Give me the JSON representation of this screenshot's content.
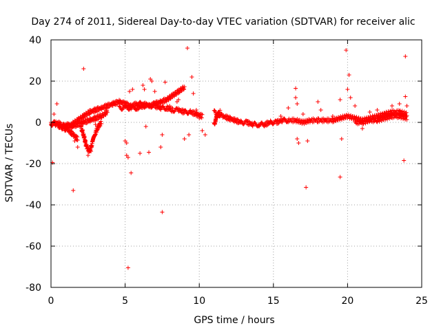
{
  "chart_data": {
    "type": "scatter",
    "title": "Day 274 of 2011, Sidereal Day-to-day VTEC variation (SDTVAR) for receiver alic",
    "xlabel": "GPS time / hours",
    "ylabel": "SDTVAR / TECUs",
    "xlim": [
      0,
      25
    ],
    "ylim": [
      -80,
      40
    ],
    "xticks": [
      0,
      5,
      10,
      15,
      20,
      25
    ],
    "yticks": [
      -80,
      -60,
      -40,
      -20,
      0,
      20,
      40
    ],
    "xtick_labels": [
      "0",
      "5",
      "10",
      "15",
      "20",
      "25"
    ],
    "ytick_labels": [
      "-80",
      "-60",
      "-40",
      "-20",
      "0",
      "20",
      "40"
    ],
    "grid": true,
    "marker": "+",
    "series": [
      {
        "name": "SDTVAR",
        "color": "#ff0000",
        "segments": [
          {
            "x": [
              0.0,
              0.3,
              0.7,
              1.0,
              1.4,
              1.8,
              2.2,
              2.6
            ],
            "y": [
              -1,
              0,
              -1,
              -2,
              -1,
              1,
              3,
              5
            ]
          },
          {
            "x": [
              2.6,
              3.0,
              3.4,
              3.8,
              4.2,
              4.6,
              5.0,
              5.4,
              5.8,
              6.2,
              6.6,
              7.0,
              7.4,
              7.8,
              8.2,
              8.6,
              9.0
            ],
            "y": [
              5,
              6,
              7,
              8,
              9,
              10,
              9,
              8,
              9,
              9,
              8,
              9,
              10,
              11,
              13,
              15,
              17
            ]
          },
          {
            "x": [
              4.6,
              5.0,
              5.4,
              5.8,
              6.2,
              6.6,
              7.0,
              7.4,
              7.8,
              8.2,
              8.6,
              9.0,
              9.4,
              9.8,
              10.2
            ],
            "y": [
              7,
              7,
              7,
              7,
              8,
              8,
              8,
              7,
              7,
              6,
              6,
              5,
              5,
              4,
              3
            ]
          },
          {
            "x": [
              0.0,
              0.3,
              0.6,
              0.9,
              1.2,
              1.5,
              1.8
            ],
            "y": [
              0,
              -1,
              -2,
              -3,
              -4,
              -6,
              -8
            ]
          },
          {
            "x": [
              2.0,
              2.2,
              2.4,
              2.6,
              2.8,
              3.0,
              3.2,
              3.4
            ],
            "y": [
              -2,
              -6,
              -12,
              -14,
              -10,
              -5,
              -2,
              0
            ]
          },
          {
            "x": [
              1.0,
              1.4,
              1.8,
              2.2,
              2.6,
              3.0,
              3.4,
              3.8
            ],
            "y": [
              -1,
              -2,
              -1,
              0,
              1,
              2,
              3,
              5
            ]
          },
          {
            "x": [
              11.0,
              11.3,
              11.6,
              12.0,
              12.4,
              12.8,
              13.2,
              13.6,
              14.0,
              14.4,
              14.8,
              15.2,
              15.6,
              16.0
            ],
            "y": [
              5,
              4,
              3,
              2,
              1,
              0,
              0,
              -1,
              -1,
              -1,
              0,
              0,
              1,
              1
            ]
          },
          {
            "x": [
              11.0,
              11.1,
              11.2,
              11.3,
              11.4
            ],
            "y": [
              -1,
              1,
              3,
              4,
              5
            ]
          },
          {
            "x": [
              16.0,
              16.5,
              17.0,
              17.5,
              18.0,
              18.5,
              19.0,
              19.5,
              20.0,
              20.5,
              21.0,
              21.5,
              22.0,
              22.5,
              23.0,
              23.5,
              24.0
            ],
            "y": [
              1,
              1,
              0,
              1,
              1,
              1,
              1,
              2,
              3,
              2,
              1,
              2,
              3,
              4,
              5,
              5,
              4
            ]
          },
          {
            "x": [
              20.5,
              21.0,
              21.5,
              22.0,
              22.5,
              23.0,
              23.5,
              24.0
            ],
            "y": [
              0,
              0,
              1,
              1,
              2,
              3,
              3,
              2
            ]
          }
        ],
        "points": [
          {
            "x": 0.1,
            "y": -19.5
          },
          {
            "x": 0.2,
            "y": 4
          },
          {
            "x": 0.4,
            "y": 9
          },
          {
            "x": 1.5,
            "y": -33
          },
          {
            "x": 1.6,
            "y": -9
          },
          {
            "x": 1.8,
            "y": -12
          },
          {
            "x": 2.2,
            "y": 26
          },
          {
            "x": 2.5,
            "y": -16
          },
          {
            "x": 2.7,
            "y": -14
          },
          {
            "x": 3.0,
            "y": -1
          },
          {
            "x": 3.3,
            "y": 4
          },
          {
            "x": 4.3,
            "y": 9
          },
          {
            "x": 4.8,
            "y": 10
          },
          {
            "x": 5.0,
            "y": -9
          },
          {
            "x": 5.1,
            "y": -10
          },
          {
            "x": 5.1,
            "y": -16
          },
          {
            "x": 5.2,
            "y": -17
          },
          {
            "x": 5.2,
            "y": -70.5
          },
          {
            "x": 5.4,
            "y": -24.5
          },
          {
            "x": 5.3,
            "y": 15
          },
          {
            "x": 5.5,
            "y": 16
          },
          {
            "x": 6.0,
            "y": -15
          },
          {
            "x": 6.2,
            "y": 18
          },
          {
            "x": 6.3,
            "y": 16
          },
          {
            "x": 6.4,
            "y": -2
          },
          {
            "x": 6.6,
            "y": -14.5
          },
          {
            "x": 6.7,
            "y": 21
          },
          {
            "x": 6.8,
            "y": 20
          },
          {
            "x": 7.0,
            "y": 15
          },
          {
            "x": 7.4,
            "y": -12
          },
          {
            "x": 7.5,
            "y": -43.5
          },
          {
            "x": 7.5,
            "y": -6
          },
          {
            "x": 7.7,
            "y": 19.5
          },
          {
            "x": 8.0,
            "y": 8
          },
          {
            "x": 8.5,
            "y": 10
          },
          {
            "x": 8.6,
            "y": 11
          },
          {
            "x": 9.0,
            "y": -8
          },
          {
            "x": 9.2,
            "y": 36
          },
          {
            "x": 9.3,
            "y": -6
          },
          {
            "x": 9.5,
            "y": 22
          },
          {
            "x": 9.6,
            "y": 14
          },
          {
            "x": 9.8,
            "y": 6
          },
          {
            "x": 10.0,
            "y": 2
          },
          {
            "x": 10.2,
            "y": -4
          },
          {
            "x": 10.4,
            "y": -6
          },
          {
            "x": 15.5,
            "y": 3
          },
          {
            "x": 16.0,
            "y": 7
          },
          {
            "x": 16.5,
            "y": 16.5
          },
          {
            "x": 16.5,
            "y": 12
          },
          {
            "x": 16.6,
            "y": 9
          },
          {
            "x": 16.6,
            "y": -8
          },
          {
            "x": 16.7,
            "y": -10
          },
          {
            "x": 17.0,
            "y": 4
          },
          {
            "x": 17.2,
            "y": -31.5
          },
          {
            "x": 17.3,
            "y": -9
          },
          {
            "x": 18.0,
            "y": 10
          },
          {
            "x": 18.2,
            "y": 6
          },
          {
            "x": 19.0,
            "y": 3
          },
          {
            "x": 19.5,
            "y": -26.5
          },
          {
            "x": 19.6,
            "y": -8
          },
          {
            "x": 19.5,
            "y": 11
          },
          {
            "x": 19.9,
            "y": 35
          },
          {
            "x": 20.0,
            "y": 16
          },
          {
            "x": 20.1,
            "y": 23
          },
          {
            "x": 20.2,
            "y": 12
          },
          {
            "x": 20.5,
            "y": 8
          },
          {
            "x": 21.0,
            "y": -3
          },
          {
            "x": 21.5,
            "y": 5
          },
          {
            "x": 22.0,
            "y": 6
          },
          {
            "x": 23.0,
            "y": 8
          },
          {
            "x": 23.5,
            "y": 9
          },
          {
            "x": 23.8,
            "y": -18.5
          },
          {
            "x": 23.9,
            "y": 32
          },
          {
            "x": 23.9,
            "y": 12.5
          },
          {
            "x": 24.0,
            "y": 8
          }
        ]
      }
    ]
  }
}
